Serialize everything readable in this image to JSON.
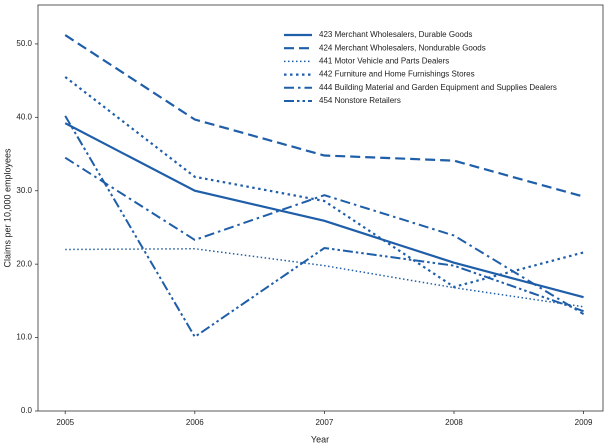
{
  "chart_data": {
    "type": "line",
    "xlabel": "Year",
    "ylabel": "Claims per 10,000 employees",
    "x": [
      2005,
      2006,
      2007,
      2008,
      2009
    ],
    "xlim": [
      2004.79,
      2009.15
    ],
    "xticks": [
      2005,
      2006,
      2007,
      2008,
      2009
    ],
    "ylim": [
      0,
      55.3
    ],
    "yticks": [
      {
        "value": 0,
        "label": "0.0"
      },
      {
        "value": 10,
        "label": "10.0"
      },
      {
        "value": 20,
        "label": "20.0"
      },
      {
        "value": 30,
        "label": "30.0"
      },
      {
        "value": 40,
        "label": "40.0"
      },
      {
        "value": 50,
        "label": "50.0"
      }
    ],
    "legend": "upper right",
    "series": [
      {
        "name": "423 Merchant Wholesalers, Durable Goods",
        "color": "#1f5ea8",
        "dash": "solid",
        "values": [
          39.2,
          30.0,
          25.9,
          20.2,
          15.5
        ]
      },
      {
        "name": "424 Merchant Wholesalers, Nondurable Goods",
        "color": "#1f5ea8",
        "dash": "dashed",
        "values": [
          51.2,
          39.7,
          34.8,
          34.1,
          29.2
        ]
      },
      {
        "name": "441 Motor Vehicle and Parts Dealers",
        "color": "#1f5ea8",
        "dash": "dotted",
        "values": [
          22.0,
          22.1,
          19.8,
          16.8,
          14.2
        ]
      },
      {
        "name": "442 Furniture and Home Furnishings Stores",
        "color": "#1f5ea8",
        "dash": "dotted-wide",
        "values": [
          45.5,
          31.9,
          28.6,
          16.9,
          21.6
        ]
      },
      {
        "name": "444 Building Material and Garden Equipment and Supplies Dealers",
        "color": "#1f5ea8",
        "dash": "dash-dot",
        "values": [
          34.5,
          23.3,
          29.4,
          23.9,
          13.2
        ]
      },
      {
        "name": "454 Nonstore Retailers",
        "color": "#1f5ea8",
        "dash": "dash-dot-dot",
        "values": [
          40.2,
          10.1,
          22.2,
          19.8,
          13.6
        ]
      }
    ]
  }
}
